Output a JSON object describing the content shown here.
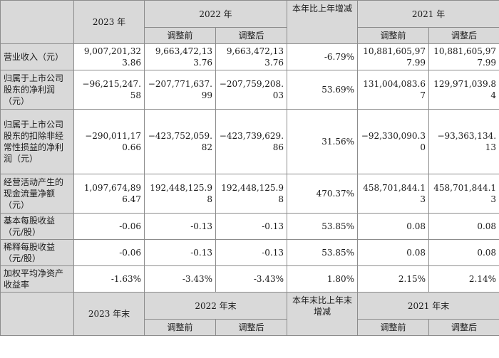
{
  "header_top": {
    "y2023": "2023 年",
    "y2022": "2022 年",
    "yoy": "本年比上年增减",
    "y2021": "2021 年",
    "before": "调整前",
    "after": "调整后"
  },
  "rows": [
    {
      "label": "营业收入（元）",
      "v2023": "9,007,201,323.86",
      "v2022_before": "9,663,472,133.76",
      "v2022_after": "9,663,472,133.76",
      "yoy": "-6.79%",
      "v2021_before": "10,881,605,977.99",
      "v2021_after": "10,881,605,977.99"
    },
    {
      "label": "归属于上市公司股东的净利润（元）",
      "v2023": "−96,215,247.58",
      "v2022_before": "−207,771,637.99",
      "v2022_after": "−207,759,208.03",
      "yoy": "53.69%",
      "v2021_before": "131,004,083.67",
      "v2021_after": "129,971,039.84"
    },
    {
      "label": "归属于上市公司股东的扣除非经常性损益的净利润（元）",
      "v2023": "−290,011,170.66",
      "v2022_before": "−423,752,059.82",
      "v2022_after": "−423,739,629.86",
      "yoy": "31.56%",
      "v2021_before": "−92,330,090.30",
      "v2021_after": "−93,363,134.13"
    },
    {
      "label": "经营活动产生的现金流量净额（元）",
      "v2023": "1,097,674,896.47",
      "v2022_before": "192,448,125.98",
      "v2022_after": "192,448,125.98",
      "yoy": "470.37%",
      "v2021_before": "458,701,844.13",
      "v2021_after": "458,701,844.13"
    },
    {
      "label": "基本每股收益（元/股）",
      "v2023": "-0.06",
      "v2022_before": "-0.13",
      "v2022_after": "-0.13",
      "yoy": "53.85%",
      "v2021_before": "0.08",
      "v2021_after": "0.08"
    },
    {
      "label": "稀释每股收益（元/股）",
      "v2023": "-0.06",
      "v2022_before": "-0.13",
      "v2022_after": "-0.13",
      "yoy": "53.85%",
      "v2021_before": "0.08",
      "v2021_after": "0.08"
    },
    {
      "label": "加权平均净资产收益率",
      "v2023": "-1.63%",
      "v2022_before": "-3.43%",
      "v2022_after": "-3.43%",
      "yoy": "1.80%",
      "v2021_before": "2.15%",
      "v2021_after": "2.14%"
    }
  ],
  "header_bottom": {
    "y2023": "2023 年末",
    "y2022": "2022 年末",
    "yoy": "本年末比上年末增减",
    "y2021": "2021 年末",
    "before": "调整前",
    "after": "调整后"
  }
}
